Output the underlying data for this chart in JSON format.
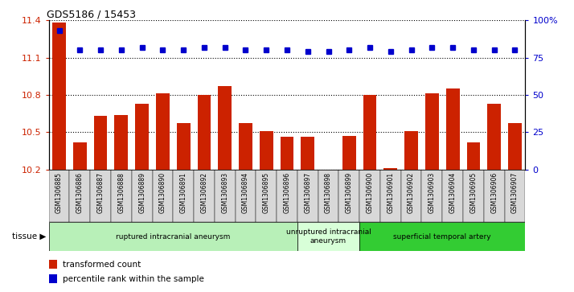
{
  "title": "GDS5186 / 15453",
  "samples": [
    "GSM1306885",
    "GSM1306886",
    "GSM1306887",
    "GSM1306888",
    "GSM1306889",
    "GSM1306890",
    "GSM1306891",
    "GSM1306892",
    "GSM1306893",
    "GSM1306894",
    "GSM1306895",
    "GSM1306896",
    "GSM1306897",
    "GSM1306898",
    "GSM1306899",
    "GSM1306900",
    "GSM1306901",
    "GSM1306902",
    "GSM1306903",
    "GSM1306904",
    "GSM1306905",
    "GSM1306906",
    "GSM1306907"
  ],
  "transformed_counts": [
    11.38,
    10.42,
    10.63,
    10.64,
    10.73,
    10.81,
    10.57,
    10.8,
    10.87,
    10.57,
    10.51,
    10.46,
    10.46,
    10.2,
    10.47,
    10.8,
    10.21,
    10.51,
    10.81,
    10.85,
    10.42,
    10.73,
    10.57
  ],
  "percentile_ranks": [
    93,
    80,
    80,
    80,
    82,
    80,
    80,
    82,
    82,
    80,
    80,
    80,
    79,
    79,
    80,
    82,
    79,
    80,
    82,
    82,
    80,
    80,
    80
  ],
  "groups": [
    {
      "label": "ruptured intracranial aneurysm",
      "start": 0,
      "end": 12,
      "color": "#b8f0b8"
    },
    {
      "label": "unruptured intracranial\naneurysm",
      "start": 12,
      "end": 15,
      "color": "#d8ffd8"
    },
    {
      "label": "superficial temporal artery",
      "start": 15,
      "end": 23,
      "color": "#33cc33"
    }
  ],
  "ylim_left": [
    10.2,
    11.4
  ],
  "ylim_right": [
    0,
    100
  ],
  "yticks_left": [
    10.2,
    10.5,
    10.8,
    11.1,
    11.4
  ],
  "yticks_right": [
    0,
    25,
    50,
    75,
    100
  ],
  "bar_color": "#cc2200",
  "dot_color": "#0000cc",
  "bg_color": "#ffffff",
  "xtick_bg": "#d8d8d8",
  "left_tick_color": "#cc2200",
  "right_tick_color": "#0000cc",
  "legend_bar_label": "transformed count",
  "legend_dot_label": "percentile rank within the sample",
  "tissue_label": "tissue"
}
